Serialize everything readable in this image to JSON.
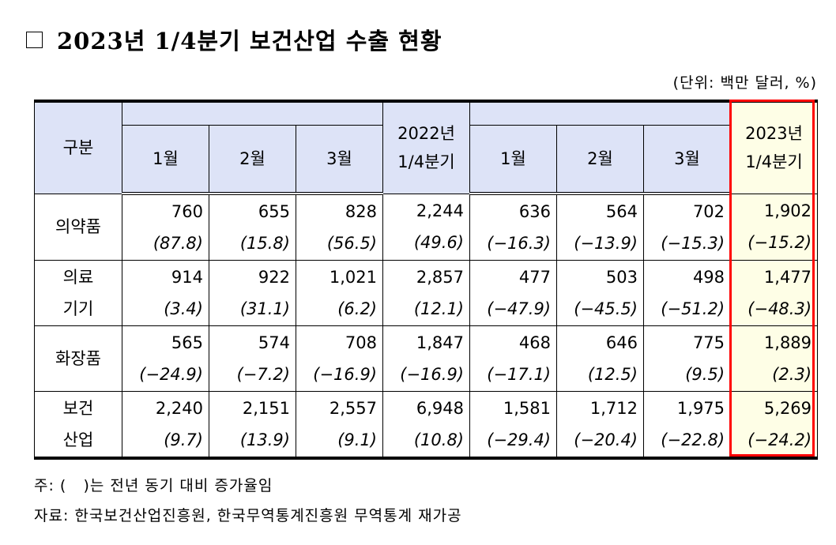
{
  "title": {
    "checkbox_icon": "empty-square",
    "text": "2023년 1/4분기 보건산업 수출 현황"
  },
  "unit_label": "(단위: 백만 달러, %)",
  "table": {
    "header": {
      "category": "구분",
      "group_2022_label": "",
      "group_2023_label": "",
      "months_2022": [
        "1월",
        "2월",
        "3월"
      ],
      "quarter_2022": [
        "2022년",
        "1/4분기"
      ],
      "months_2023": [
        "1월",
        "2월",
        "3월"
      ],
      "quarter_2023": [
        "2023년",
        "1/4분기"
      ]
    },
    "rows": [
      {
        "category": [
          "의약품"
        ],
        "values": [
          "760",
          "655",
          "828",
          "2,244",
          "636",
          "564",
          "702",
          "1,902"
        ],
        "pct": [
          "(87.8)",
          "(15.8)",
          "(56.5)",
          "(49.6)",
          "(−16.3)",
          "(−13.9)",
          "(−15.3)",
          "(−15.2)"
        ]
      },
      {
        "category": [
          "의료",
          "기기"
        ],
        "values": [
          "914",
          "922",
          "1,021",
          "2,857",
          "477",
          "503",
          "498",
          "1,477"
        ],
        "pct": [
          "(3.4)",
          "(31.1)",
          "(6.2)",
          "(12.1)",
          "(−47.9)",
          "(−45.5)",
          "(−51.2)",
          "(−48.3)"
        ]
      },
      {
        "category": [
          "화장품"
        ],
        "values": [
          "565",
          "574",
          "708",
          "1,847",
          "468",
          "646",
          "775",
          "1,889"
        ],
        "pct": [
          "(−24.9)",
          "(−7.2)",
          "(−16.9)",
          "(−16.9)",
          "(−17.1)",
          "(12.5)",
          "(9.5)",
          "(2.3)"
        ]
      },
      {
        "category": [
          "보건",
          "산업"
        ],
        "values": [
          "2,240",
          "2,151",
          "2,557",
          "6,948",
          "1,581",
          "1,712",
          "1,975",
          "5,269"
        ],
        "pct": [
          "(9.7)",
          "(13.9)",
          "(9.1)",
          "(10.8)",
          "(−29.4)",
          "(−20.4)",
          "(−22.8)",
          "(−24.2)"
        ]
      }
    ],
    "highlight_color": "#ff0000",
    "header_bg": "#dde3f7",
    "highlight_bg": "#fefee6"
  },
  "notes": {
    "note1": "주: (   )는 전년 동기 대비 증가율임",
    "note2": "자료: 한국보건산업진흥원, 한국무역통계진흥원 무역통계 재가공"
  }
}
